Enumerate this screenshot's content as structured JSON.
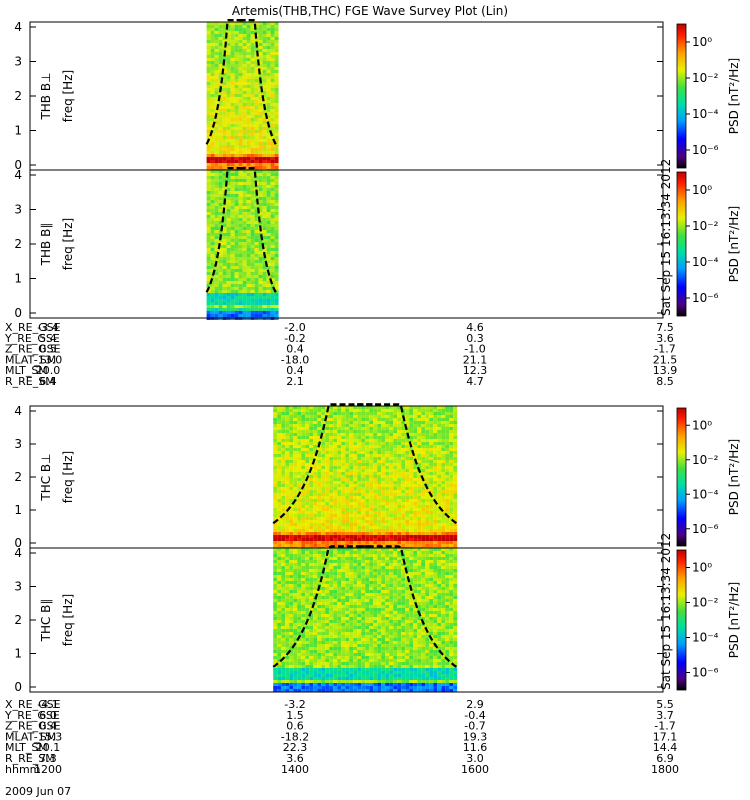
{
  "title": "Artemis(THB,THC) FGE Wave Survey Plot (Lin)",
  "stamp": "Sat Sep 15 16:13:34 2012",
  "colorbar": {
    "label": "PSD [nT²/Hz]",
    "tick_labels": [
      "10⁰",
      "10⁻²",
      "10⁻⁴",
      "10⁻⁶"
    ],
    "log_range": [
      -7,
      1
    ]
  },
  "date_label": "2009 Jun 07",
  "chart_data": [
    {
      "type": "heatmap",
      "probe": "THB",
      "ylabel": [
        "THB B⊥",
        "freq [Hz]"
      ],
      "ylim": [
        0,
        4
      ],
      "yticks": [
        "0",
        "1",
        "2",
        "3",
        "4"
      ],
      "x_range_min": [
        1100,
        1860
      ],
      "data_range_min": [
        1312,
        1395
      ],
      "cyclotron_curve": "dashed"
    },
    {
      "type": "heatmap",
      "probe": "THB",
      "ylabel": [
        "THB B∥",
        "freq [Hz]"
      ],
      "ylim": [
        0,
        4
      ],
      "yticks": [
        "0",
        "1",
        "2",
        "3",
        "4"
      ],
      "x_range_min": [
        1100,
        1860
      ],
      "data_range_min": [
        1312,
        1395
      ],
      "cyclotron_curve": "dashed"
    },
    {
      "type": "heatmap",
      "probe": "THC",
      "ylabel": [
        "THC B⊥",
        "freq [Hz]"
      ],
      "ylim": [
        0,
        4
      ],
      "yticks": [
        "0",
        "1",
        "2",
        "3",
        "4"
      ],
      "x_range_min": [
        1100,
        1860
      ],
      "data_range_min": [
        1392,
        1612
      ],
      "cyclotron_curve": "dashed"
    },
    {
      "type": "heatmap",
      "probe": "THC",
      "ylabel": [
        "THC B∥",
        "freq [Hz]"
      ],
      "ylim": [
        0,
        4
      ],
      "yticks": [
        "0",
        "1",
        "2",
        "3",
        "4"
      ],
      "x_range_min": [
        1100,
        1860
      ],
      "data_range_min": [
        1392,
        1612
      ],
      "cyclotron_curve": "dashed"
    }
  ],
  "ephemeris_thb": {
    "rows": [
      {
        "label": "X_RE_GSE",
        "values": [
          "-3.4",
          "-2.0",
          "4.6",
          "7.5"
        ]
      },
      {
        "label": "Y_RE_GSE",
        "values": [
          "5.4",
          "-0.2",
          "0.3",
          "3.6"
        ]
      },
      {
        "label": "Z_RE_GSE",
        "values": [
          "0.5",
          "0.4",
          "-1.0",
          "-1.7"
        ]
      },
      {
        "label": "MLAT_SM",
        "values": [
          "-13.0",
          "-18.0",
          "21.1",
          "21.5"
        ]
      },
      {
        "label": "MLT_SM",
        "values": [
          "20.0",
          "0.4",
          "12.3",
          "13.9"
        ]
      },
      {
        "label": "R_RE_SM",
        "values": [
          "6.4",
          "2.1",
          "4.7",
          "8.5"
        ]
      }
    ]
  },
  "ephemeris_thc": {
    "rows": [
      {
        "label": "X_RE_GSE",
        "values": [
          "-4.1",
          "-3.2",
          "2.9",
          "5.5"
        ]
      },
      {
        "label": "Y_RE_GSE",
        "values": [
          "6.0",
          "1.5",
          "-0.4",
          "3.7"
        ]
      },
      {
        "label": "Z_RE_GSE",
        "values": [
          "0.4",
          "0.6",
          "-0.7",
          "-1.7"
        ]
      },
      {
        "label": "MLAT_SM",
        "values": [
          "-15.3",
          "-18.2",
          "19.3",
          "17.1"
        ]
      },
      {
        "label": "MLT_SM",
        "values": [
          "20.1",
          "22.3",
          "11.6",
          "14.4"
        ]
      },
      {
        "label": "R_RE_SM",
        "values": [
          "7.3",
          "3.6",
          "3.0",
          "6.9"
        ]
      },
      {
        "label": "hhmm",
        "values": [
          "1200",
          "1400",
          "1600",
          "1800"
        ]
      }
    ]
  }
}
